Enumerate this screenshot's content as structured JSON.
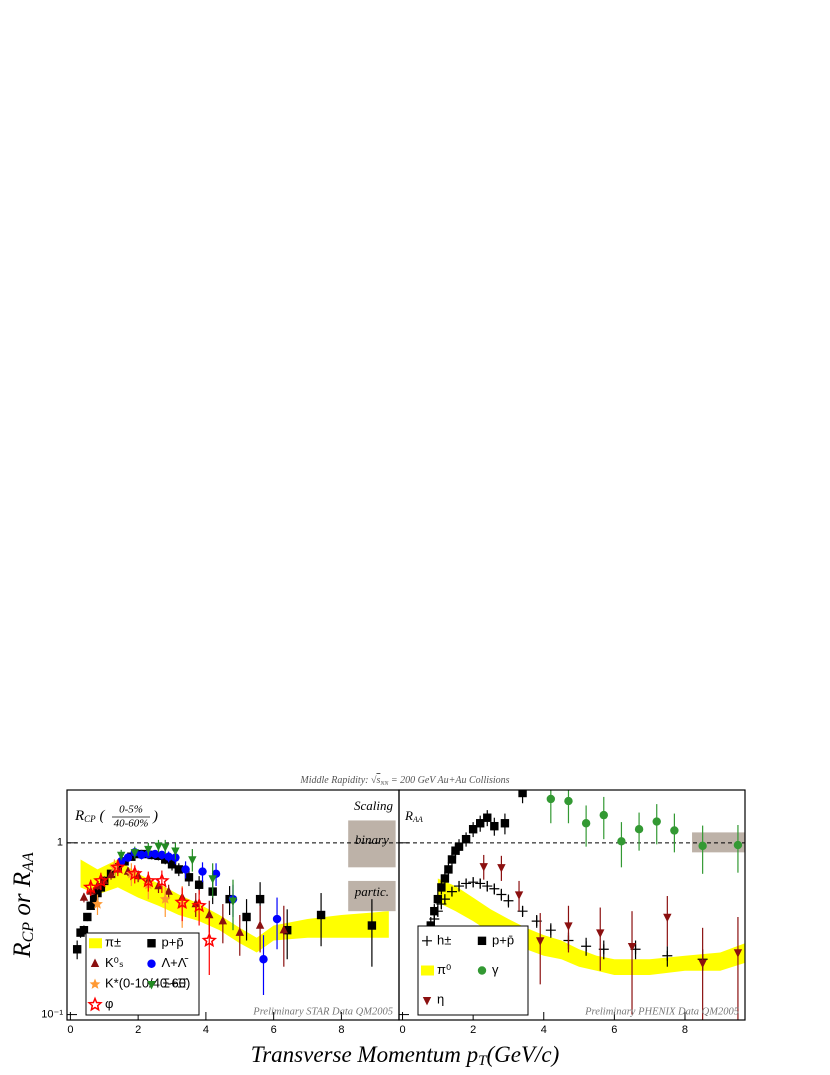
{
  "figure": {
    "title": [
      "Middle Rapidity: ",
      "√",
      "s",
      "NN",
      " = 200 GeV Au+Au Collisions"
    ],
    "xlabel": [
      "Transverse Momentum p",
      "T",
      "(GeV/c)"
    ],
    "ylabel": [
      "R",
      "CP",
      " or R",
      "AA"
    ]
  },
  "chart_data": [
    {
      "type": "scatter",
      "log_y": true,
      "label": [
        "R",
        "CP",
        " (",
        "0-5%",
        "40-60%",
        ")"
      ],
      "scaling_title": "Scaling",
      "note": "Preliminary STAR Data QM2005",
      "xlim": [
        -0.1,
        9.7
      ],
      "ylim": [
        0.093,
        2.03
      ],
      "xticks": [
        0,
        2,
        4,
        6,
        8
      ],
      "yticks": [
        {
          "value": 0.1,
          "label": "10⁻¹"
        },
        1
      ],
      "reference": 1,
      "scaling_boxes": [
        {
          "label": "binary",
          "color": "#bdb2a8",
          "x": [
            8.2,
            9.6
          ],
          "y": [
            0.72,
            1.35
          ]
        },
        {
          "label": "partic.",
          "color": "#bdb2a8",
          "x": [
            8.2,
            9.6
          ],
          "y": [
            0.4,
            0.6
          ]
        }
      ],
      "series": [
        {
          "name": "π±",
          "marker": "band",
          "color": "#ffff00",
          "x": [
            0.3,
            0.8,
            1.4,
            2.0,
            2.6,
            3.2,
            3.8,
            4.4,
            5.0,
            5.5,
            6.0,
            7.0,
            8.0,
            9.4
          ],
          "lower": [
            0.55,
            0.5,
            0.55,
            0.48,
            0.43,
            0.38,
            0.35,
            0.31,
            0.26,
            0.23,
            0.27,
            0.28,
            0.28,
            0.28
          ],
          "upper": [
            0.8,
            0.7,
            0.8,
            0.66,
            0.58,
            0.5,
            0.44,
            0.38,
            0.32,
            0.28,
            0.33,
            0.36,
            0.38,
            0.4
          ]
        },
        {
          "name": "p+p̄",
          "marker": "square",
          "color": "#000000",
          "x": [
            0.2,
            0.3,
            0.4,
            0.5,
            0.6,
            0.7,
            0.8,
            0.9,
            1.0,
            1.2,
            1.4,
            1.6,
            1.8,
            2.0,
            2.2,
            2.4,
            2.6,
            2.8,
            3.0,
            3.2,
            3.5,
            3.8,
            4.2,
            4.7,
            5.2,
            5.6,
            6.4,
            7.4,
            8.9
          ],
          "values": [
            0.24,
            0.3,
            0.31,
            0.37,
            0.43,
            0.47,
            0.51,
            0.55,
            0.6,
            0.66,
            0.72,
            0.78,
            0.83,
            0.86,
            0.86,
            0.85,
            0.84,
            0.8,
            0.75,
            0.7,
            0.63,
            0.57,
            0.52,
            0.47,
            0.37,
            0.47,
            0.31,
            0.38,
            0.33
          ],
          "errors": [
            0.03,
            0.02,
            0.02,
            0.02,
            0.02,
            0.02,
            0.02,
            0.02,
            0.03,
            0.03,
            0.03,
            0.03,
            0.04,
            0.04,
            0.04,
            0.05,
            0.05,
            0.05,
            0.06,
            0.06,
            0.07,
            0.07,
            0.08,
            0.09,
            0.1,
            0.12,
            0.1,
            0.13,
            0.14
          ]
        },
        {
          "name": "K⁰ₛ",
          "marker": "triangle-up",
          "color": "#8b1010",
          "x": [
            0.4,
            0.6,
            0.8,
            1.0,
            1.2,
            1.4,
            1.7,
            2.0,
            2.3,
            2.6,
            2.9,
            3.3,
            3.7,
            4.1,
            4.5,
            5.0,
            5.6,
            6.3
          ],
          "values": [
            0.48,
            0.52,
            0.56,
            0.6,
            0.65,
            0.7,
            0.68,
            0.64,
            0.6,
            0.56,
            0.52,
            0.48,
            0.44,
            0.38,
            0.35,
            0.3,
            0.33,
            0.31
          ],
          "errors": [
            0.03,
            0.03,
            0.03,
            0.03,
            0.04,
            0.04,
            0.04,
            0.05,
            0.05,
            0.05,
            0.05,
            0.06,
            0.07,
            0.08,
            0.09,
            0.08,
            0.1,
            0.12
          ]
        },
        {
          "name": "Λ+Λ̄",
          "marker": "circle",
          "color": "#0000ff",
          "x": [
            1.5,
            1.7,
            1.9,
            2.1,
            2.3,
            2.5,
            2.7,
            2.9,
            3.1,
            3.4,
            3.9,
            4.3,
            4.8,
            5.7,
            6.1
          ],
          "values": [
            0.78,
            0.82,
            0.88,
            0.85,
            0.86,
            0.86,
            0.85,
            0.83,
            0.82,
            0.7,
            0.68,
            0.66,
            0.47,
            0.21,
            0.36
          ],
          "errors": [
            0.04,
            0.04,
            0.05,
            0.05,
            0.05,
            0.05,
            0.05,
            0.06,
            0.07,
            0.08,
            0.09,
            0.1,
            0.1,
            0.08,
            0.12
          ]
        },
        {
          "name": "K*(0-10/40-60)",
          "marker": "star",
          "color": "#ff9933",
          "x": [
            0.8,
            1.3,
            1.8,
            2.3,
            2.8,
            3.3
          ],
          "values": [
            0.44,
            0.72,
            0.66,
            0.57,
            0.47,
            0.44
          ],
          "errors": [
            0.06,
            0.08,
            0.1,
            0.1,
            0.1,
            0.12
          ]
        },
        {
          "name": "Ξ+Ξ̄",
          "marker": "triangle-down",
          "color": "#228b22",
          "x": [
            1.5,
            1.9,
            2.3,
            2.6,
            2.8,
            3.1,
            3.6,
            4.2,
            4.8
          ],
          "values": [
            0.85,
            0.88,
            0.92,
            0.96,
            0.95,
            0.9,
            0.8,
            0.62,
            0.46
          ],
          "errors": [
            0.06,
            0.07,
            0.08,
            0.08,
            0.09,
            0.1,
            0.12,
            0.14,
            0.15
          ]
        },
        {
          "name": "φ",
          "marker": "open-star",
          "color": "#ff0000",
          "x": [
            0.6,
            0.9,
            1.4,
            1.9,
            2.3,
            2.7,
            3.3,
            3.8,
            4.1
          ],
          "values": [
            0.55,
            0.6,
            0.72,
            0.66,
            0.6,
            0.6,
            0.45,
            0.43,
            0.27
          ],
          "errors": [
            0.06,
            0.07,
            0.08,
            0.08,
            0.08,
            0.09,
            0.1,
            0.1,
            0.1
          ]
        }
      ]
    },
    {
      "type": "scatter",
      "log_y": true,
      "label": [
        "R",
        "AA"
      ],
      "note": "Preliminary PHENIX Data QM2005",
      "xlim": [
        -0.1,
        9.7
      ],
      "ylim": [
        0.093,
        2.03
      ],
      "xticks": [
        0,
        2,
        4,
        6,
        8
      ],
      "reference": 1,
      "scaling_boxes": [
        {
          "color": "#bdb2a8",
          "x": [
            8.2,
            9.7
          ],
          "y": [
            0.88,
            1.15
          ]
        }
      ],
      "series": [
        {
          "name": "h±",
          "marker": "cross",
          "color": "#000000",
          "x": [
            0.6,
            0.7,
            0.8,
            0.9,
            1.0,
            1.1,
            1.2,
            1.4,
            1.6,
            1.8,
            2.0,
            2.2,
            2.4,
            2.6,
            2.8,
            3.0,
            3.4,
            3.8,
            4.2,
            4.7,
            5.2,
            5.7,
            6.6,
            7.5,
            8.5
          ],
          "values": [
            0.24,
            0.28,
            0.32,
            0.36,
            0.4,
            0.44,
            0.47,
            0.52,
            0.56,
            0.58,
            0.59,
            0.58,
            0.56,
            0.54,
            0.5,
            0.46,
            0.4,
            0.35,
            0.31,
            0.27,
            0.25,
            0.24,
            0.24,
            0.22,
            0.21
          ],
          "errors": [
            0.02,
            0.02,
            0.02,
            0.03,
            0.03,
            0.03,
            0.03,
            0.03,
            0.04,
            0.04,
            0.04,
            0.04,
            0.04,
            0.04,
            0.04,
            0.04,
            0.03,
            0.03,
            0.03,
            0.03,
            0.03,
            0.03,
            0.03,
            0.03,
            0.03
          ]
        },
        {
          "name": "p+p̄",
          "marker": "square",
          "color": "#000000",
          "x": [
            0.6,
            0.7,
            0.8,
            0.9,
            1.0,
            1.1,
            1.2,
            1.3,
            1.4,
            1.5,
            1.6,
            1.8,
            2.0,
            2.2,
            2.4,
            2.6,
            2.9,
            3.4
          ],
          "values": [
            0.22,
            0.27,
            0.33,
            0.4,
            0.47,
            0.55,
            0.62,
            0.7,
            0.8,
            0.9,
            0.95,
            1.05,
            1.2,
            1.3,
            1.4,
            1.25,
            1.3,
            1.95
          ],
          "errors": [
            0.03,
            0.03,
            0.04,
            0.04,
            0.05,
            0.05,
            0.06,
            0.07,
            0.08,
            0.09,
            0.1,
            0.1,
            0.12,
            0.14,
            0.15,
            0.15,
            0.18,
            0.25
          ]
        },
        {
          "name": "π⁰",
          "marker": "band",
          "color": "#ffff00",
          "x": [
            1.0,
            1.5,
            2.0,
            2.5,
            3.0,
            3.5,
            4.0,
            4.5,
            5.0,
            5.5,
            6.0,
            7.0,
            8.0,
            9.0,
            9.7
          ],
          "lower": [
            0.45,
            0.4,
            0.35,
            0.3,
            0.27,
            0.24,
            0.22,
            0.21,
            0.19,
            0.18,
            0.17,
            0.17,
            0.18,
            0.18,
            0.2
          ],
          "upper": [
            0.62,
            0.56,
            0.48,
            0.41,
            0.36,
            0.32,
            0.29,
            0.27,
            0.24,
            0.22,
            0.21,
            0.21,
            0.22,
            0.23,
            0.26
          ]
        },
        {
          "name": "γ",
          "marker": "circle",
          "color": "#339933",
          "x": [
            4.2,
            4.7,
            5.2,
            5.7,
            6.2,
            6.7,
            7.2,
            7.7,
            8.5,
            9.5
          ],
          "values": [
            1.8,
            1.75,
            1.3,
            1.45,
            1.02,
            1.2,
            1.33,
            1.18,
            0.96,
            0.97
          ],
          "errors": [
            0.5,
            0.45,
            0.35,
            0.4,
            0.3,
            0.3,
            0.35,
            0.3,
            0.3,
            0.3
          ]
        },
        {
          "name": "η",
          "marker": "triangle-down",
          "color": "#8b1010",
          "x": [
            2.3,
            2.8,
            3.3,
            3.9,
            4.7,
            5.6,
            6.5,
            7.5,
            8.5,
            9.5
          ],
          "values": [
            0.73,
            0.72,
            0.5,
            0.27,
            0.33,
            0.3,
            0.25,
            0.37,
            0.2,
            0.23
          ],
          "errors": [
            0.12,
            0.12,
            0.1,
            0.12,
            0.1,
            0.12,
            0.15,
            0.12,
            0.12,
            0.14
          ]
        }
      ]
    }
  ]
}
